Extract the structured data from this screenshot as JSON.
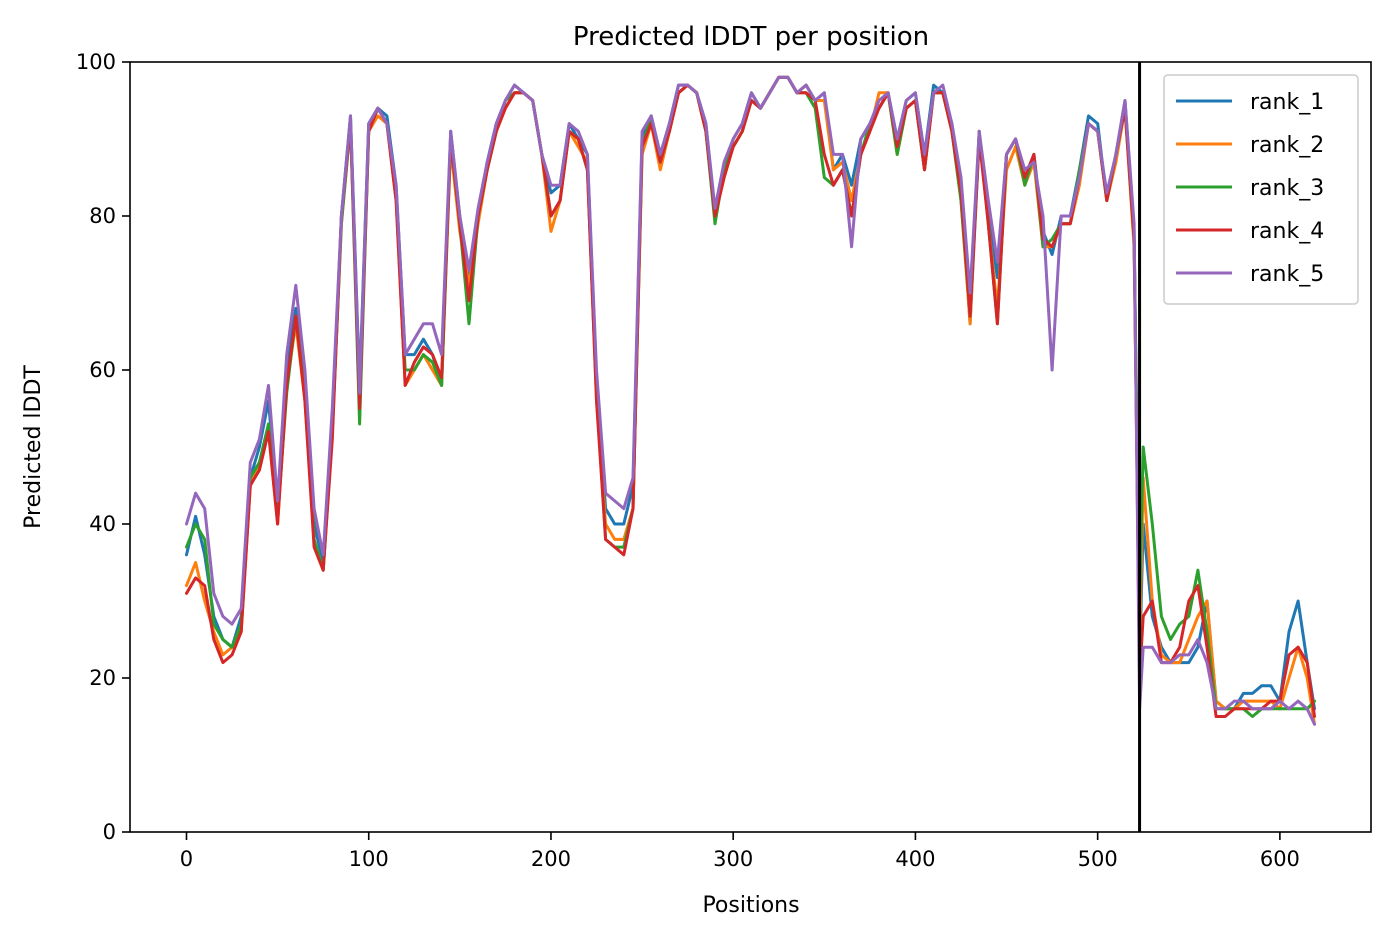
{
  "chart_data": {
    "type": "line",
    "title": "Predicted lDDT per position",
    "xlabel": "Positions",
    "ylabel": "Predicted lDDT",
    "xlim": [
      -31,
      650
    ],
    "ylim": [
      0,
      100
    ],
    "xticks": [
      0,
      100,
      200,
      300,
      400,
      500,
      600
    ],
    "yticks": [
      0,
      20,
      40,
      60,
      80,
      100
    ],
    "grid": false,
    "legend_position": "top-right",
    "separator_x": 523,
    "x": [
      0,
      5,
      10,
      15,
      20,
      25,
      30,
      35,
      40,
      45,
      50,
      55,
      60,
      65,
      70,
      75,
      80,
      85,
      90,
      95,
      100,
      105,
      110,
      115,
      120,
      125,
      130,
      135,
      140,
      145,
      150,
      155,
      160,
      165,
      170,
      175,
      180,
      185,
      190,
      195,
      200,
      205,
      210,
      215,
      220,
      225,
      230,
      235,
      240,
      245,
      250,
      255,
      260,
      265,
      270,
      275,
      280,
      285,
      290,
      295,
      300,
      305,
      310,
      315,
      320,
      325,
      330,
      335,
      340,
      345,
      350,
      355,
      360,
      365,
      370,
      375,
      380,
      385,
      390,
      395,
      400,
      405,
      410,
      415,
      420,
      425,
      430,
      435,
      440,
      445,
      450,
      455,
      460,
      465,
      470,
      475,
      480,
      485,
      490,
      495,
      500,
      505,
      510,
      515,
      520,
      523,
      525,
      530,
      535,
      540,
      545,
      550,
      555,
      560,
      565,
      570,
      575,
      580,
      585,
      590,
      595,
      600,
      605,
      610,
      615,
      619
    ],
    "series": [
      {
        "name": "rank_1",
        "color": "#1f77b4",
        "values": [
          36,
          41,
          36,
          28,
          25,
          24,
          28,
          46,
          50,
          56,
          42,
          60,
          68,
          58,
          40,
          35,
          53,
          80,
          93,
          58,
          92,
          94,
          93,
          84,
          62,
          62,
          64,
          62,
          58,
          91,
          80,
          72,
          80,
          87,
          92,
          95,
          97,
          96,
          95,
          88,
          83,
          84,
          92,
          90,
          88,
          58,
          42,
          40,
          40,
          45,
          90,
          93,
          88,
          92,
          97,
          97,
          96,
          92,
          80,
          86,
          90,
          92,
          96,
          94,
          96,
          98,
          98,
          96,
          97,
          95,
          96,
          86,
          88,
          84,
          90,
          92,
          94,
          96,
          90,
          95,
          96,
          88,
          97,
          96,
          92,
          84,
          66,
          90,
          80,
          72,
          88,
          90,
          85,
          88,
          78,
          75,
          80,
          80,
          86,
          93,
          92,
          82,
          88,
          95,
          78,
          22,
          40,
          28,
          24,
          22,
          22,
          22,
          24,
          30,
          17,
          16,
          16,
          18,
          18,
          19,
          19,
          17,
          26,
          30,
          22,
          16
        ]
      },
      {
        "name": "rank_2",
        "color": "#ff7f0e",
        "values": [
          32,
          35,
          30,
          26,
          23,
          24,
          26,
          45,
          48,
          52,
          40,
          58,
          66,
          56,
          38,
          34,
          52,
          79,
          92,
          56,
          91,
          93,
          92,
          82,
          58,
          60,
          62,
          60,
          58,
          89,
          78,
          71,
          79,
          86,
          91,
          94,
          96,
          96,
          95,
          88,
          78,
          82,
          91,
          89,
          87,
          56,
          40,
          38,
          38,
          42,
          88,
          92,
          86,
          91,
          96,
          97,
          96,
          91,
          80,
          85,
          89,
          91,
          95,
          94,
          96,
          98,
          98,
          96,
          97,
          95,
          95,
          86,
          87,
          82,
          88,
          91,
          96,
          96,
          88,
          94,
          95,
          86,
          96,
          96,
          91,
          82,
          66,
          91,
          79,
          68,
          86,
          89,
          84,
          87,
          76,
          76,
          79,
          79,
          84,
          92,
          91,
          82,
          87,
          94,
          76,
          24,
          46,
          30,
          23,
          22,
          22,
          25,
          28,
          30,
          17,
          16,
          16,
          17,
          17,
          17,
          17,
          16,
          20,
          24,
          20,
          14
        ]
      },
      {
        "name": "rank_3",
        "color": "#2ca02c",
        "values": [
          37,
          40,
          38,
          27,
          25,
          24,
          27,
          46,
          48,
          53,
          41,
          57,
          67,
          57,
          38,
          34,
          52,
          79,
          92,
          53,
          91,
          94,
          92,
          83,
          60,
          60,
          62,
          61,
          58,
          90,
          79,
          66,
          80,
          86,
          91,
          95,
          96,
          96,
          95,
          88,
          80,
          82,
          91,
          90,
          86,
          57,
          38,
          37,
          37,
          42,
          89,
          93,
          87,
          91,
          96,
          97,
          96,
          91,
          79,
          86,
          89,
          91,
          95,
          94,
          96,
          98,
          98,
          96,
          96,
          94,
          85,
          84,
          86,
          80,
          88,
          92,
          94,
          96,
          88,
          94,
          95,
          86,
          96,
          96,
          91,
          82,
          67,
          91,
          79,
          66,
          88,
          90,
          84,
          88,
          76,
          77,
          79,
          79,
          86,
          92,
          91,
          82,
          88,
          94,
          77,
          30,
          50,
          40,
          28,
          25,
          27,
          28,
          34,
          26,
          16,
          16,
          16,
          16,
          15,
          16,
          16,
          16,
          16,
          16,
          16,
          17
        ]
      },
      {
        "name": "rank_4",
        "color": "#d62728",
        "values": [
          31,
          33,
          32,
          25,
          22,
          23,
          26,
          45,
          47,
          52,
          40,
          58,
          67,
          56,
          37,
          34,
          51,
          80,
          92,
          55,
          91,
          94,
          92,
          82,
          58,
          61,
          63,
          62,
          59,
          90,
          79,
          69,
          80,
          86,
          91,
          94,
          96,
          96,
          95,
          88,
          80,
          82,
          91,
          90,
          86,
          56,
          38,
          37,
          36,
          42,
          89,
          92,
          87,
          91,
          96,
          97,
          96,
          91,
          80,
          85,
          89,
          91,
          95,
          94,
          96,
          98,
          98,
          96,
          96,
          95,
          88,
          84,
          86,
          80,
          88,
          91,
          94,
          96,
          89,
          94,
          95,
          86,
          96,
          96,
          91,
          83,
          67,
          90,
          79,
          66,
          88,
          90,
          85,
          88,
          77,
          76,
          79,
          79,
          85,
          92,
          91,
          82,
          88,
          94,
          77,
          20,
          28,
          30,
          22,
          22,
          24,
          30,
          32,
          24,
          15,
          15,
          16,
          16,
          16,
          16,
          17,
          17,
          23,
          24,
          22,
          15
        ]
      },
      {
        "name": "rank_5",
        "color": "#9467bd",
        "values": [
          40,
          44,
          42,
          31,
          28,
          27,
          29,
          48,
          51,
          58,
          43,
          62,
          71,
          60,
          42,
          36,
          55,
          80,
          93,
          57,
          92,
          94,
          92,
          84,
          62,
          64,
          66,
          66,
          62,
          91,
          80,
          73,
          81,
          87,
          92,
          95,
          97,
          96,
          95,
          88,
          84,
          84,
          92,
          91,
          88,
          60,
          44,
          43,
          42,
          46,
          91,
          93,
          88,
          92,
          97,
          97,
          96,
          92,
          81,
          87,
          90,
          92,
          96,
          94,
          96,
          98,
          98,
          96,
          97,
          95,
          96,
          88,
          88,
          76,
          90,
          92,
          95,
          96,
          90,
          95,
          96,
          88,
          96,
          97,
          92,
          85,
          70,
          91,
          82,
          74,
          88,
          90,
          86,
          87,
          80,
          60,
          80,
          80,
          85,
          92,
          91,
          83,
          88,
          95,
          79,
          16,
          24,
          24,
          22,
          22,
          23,
          23,
          25,
          22,
          16,
          16,
          17,
          17,
          16,
          16,
          16,
          17,
          16,
          17,
          16,
          14
        ]
      }
    ]
  }
}
